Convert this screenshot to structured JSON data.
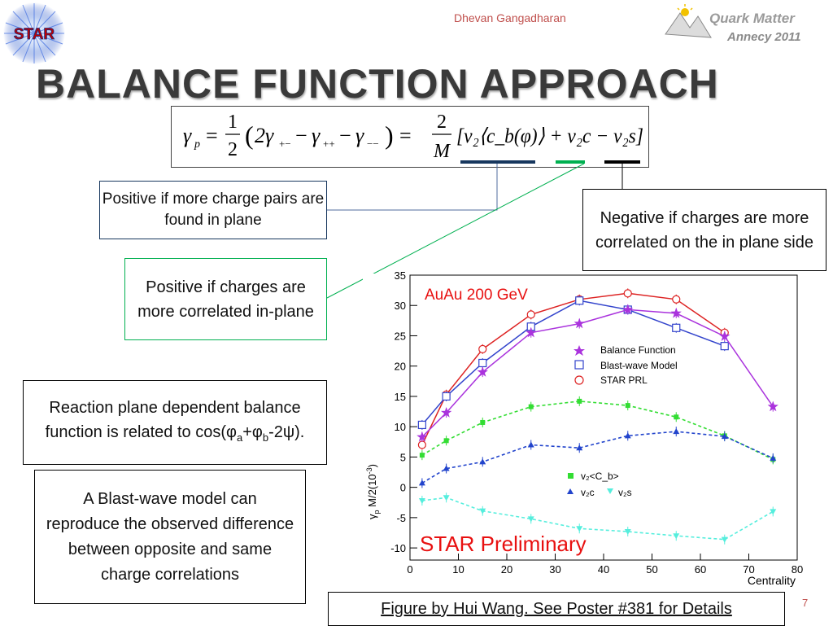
{
  "header": {
    "author": "Dhevan Gangadharan",
    "star_logo_text": "STAR",
    "conf_logo_line1": "Quark Matter",
    "conf_logo_line2": "Annecy 2011"
  },
  "slide": {
    "title": "Balance Function Approach",
    "page_number": "7"
  },
  "formula": {
    "gamma_p": "γ",
    "sub_p": "p",
    "eq1": "=",
    "half_num": "1",
    "half_den": "2",
    "paren_open": "(",
    "two_gamma": "2γ",
    "sub_pm": "+−",
    "minus1": "−",
    "gamma_pp": "γ",
    "sub_pp": "++",
    "minus2": "−",
    "gamma_mm": "γ",
    "sub_mm": "−−",
    "paren_close": ")",
    "eq2": "=",
    "frac2_num": "2",
    "frac2_den": "M",
    "bracket_content": "[v₂⟨c_b(φ)⟩ + v₂c − v₂s]",
    "colors": {
      "blue": "#17375e",
      "green": "#00b050",
      "black": "#000000"
    }
  },
  "boxes": {
    "blue_note": "Positive if more charge pairs are found in plane",
    "green_note": "Positive if charges are more correlated in-plane",
    "black_note": "Negative if charges are more correlated on the in plane side",
    "reaction_plane_text1": "Reaction plane dependent balance function is related to cos(φ",
    "reaction_plane_sub_a": "a",
    "reaction_plane_plus": "+φ",
    "reaction_plane_sub_b": "b",
    "reaction_plane_text2": "-2ψ).",
    "blastwave_note": "A Blast-wave model can reproduce the observed difference between opposite and same charge correlations",
    "caption": "Figure by Hui Wang.  See Poster #381 for Details"
  },
  "chart_data": {
    "type": "scatter",
    "title": "AuAu 200 GeV",
    "watermark": "STAR Preliminary",
    "xlabel": "Centrality",
    "ylabel_main": "γ",
    "ylabel_sub": "p",
    "ylabel_rest": " M/2(10",
    "ylabel_exp": "-3",
    "ylabel_close": ")",
    "xlim": [
      0,
      80
    ],
    "ylim": [
      -12,
      35
    ],
    "xticks": [
      0,
      10,
      20,
      30,
      40,
      50,
      60,
      70,
      80
    ],
    "yticks": [
      -10,
      -5,
      0,
      5,
      10,
      15,
      20,
      25,
      30,
      35
    ],
    "legend_top": [
      {
        "name": "Balance Function",
        "color": "#aa33dd",
        "marker": "star"
      },
      {
        "name": "Blast-wave Model",
        "color": "#3344cc",
        "marker": "square-open"
      },
      {
        "name": "STAR PRL",
        "color": "#dd2222",
        "marker": "circle-open"
      }
    ],
    "legend_bottom": [
      {
        "name": "v₂<C_b>",
        "color": "#33dd33",
        "marker": "square"
      },
      {
        "name": "v₂c",
        "color": "#2244cc",
        "marker": "triangle-up"
      },
      {
        "name": "v₂s",
        "color": "#55eedd",
        "marker": "triangle-down"
      }
    ],
    "series": [
      {
        "name": "STAR PRL",
        "color": "#dd2222",
        "marker": "circle-open",
        "line": "solid",
        "x": [
          2.5,
          7.5,
          15,
          25,
          35,
          45,
          55,
          65
        ],
        "y": [
          7,
          15.3,
          22.8,
          28.5,
          31,
          32,
          31,
          25.5
        ]
      },
      {
        "name": "Blast-wave Model",
        "color": "#3344cc",
        "marker": "square-open",
        "line": "solid",
        "x": [
          2.5,
          7.5,
          15,
          25,
          35,
          45,
          55,
          65
        ],
        "y": [
          10.3,
          15,
          20.5,
          26.5,
          30.8,
          29.3,
          26.3,
          23.3
        ]
      },
      {
        "name": "Balance Function",
        "color": "#aa33dd",
        "marker": "star",
        "line": "solid",
        "x": [
          2.5,
          7.5,
          15,
          25,
          35,
          45,
          55,
          65,
          75
        ],
        "y": [
          8.3,
          12.3,
          19,
          25.5,
          27,
          29.3,
          28.7,
          24.9,
          13.3
        ]
      },
      {
        "name": "v₂<C_b>",
        "color": "#33dd33",
        "marker": "square",
        "line": "dashed",
        "x": [
          2.5,
          7.5,
          15,
          25,
          35,
          45,
          55,
          65,
          75
        ],
        "y": [
          5.3,
          7.7,
          10.7,
          13.3,
          14.2,
          13.5,
          11.6,
          8.5,
          4.6
        ]
      },
      {
        "name": "v₂c",
        "color": "#2244cc",
        "marker": "triangle-up",
        "line": "dashed",
        "x": [
          2.5,
          7.5,
          15,
          25,
          35,
          45,
          55,
          65,
          75
        ],
        "y": [
          0.7,
          3.1,
          4.2,
          7,
          6.5,
          8.5,
          9.2,
          8.4,
          4.8
        ]
      },
      {
        "name": "v₂s",
        "color": "#55eedd",
        "marker": "triangle-down",
        "line": "dashed",
        "x": [
          2.5,
          7.5,
          15,
          25,
          35,
          45,
          55,
          65,
          75
        ],
        "y": [
          -2.2,
          -1.7,
          -3.9,
          -5.2,
          -6.8,
          -7.3,
          -8,
          -8.6,
          -4
        ]
      }
    ]
  }
}
